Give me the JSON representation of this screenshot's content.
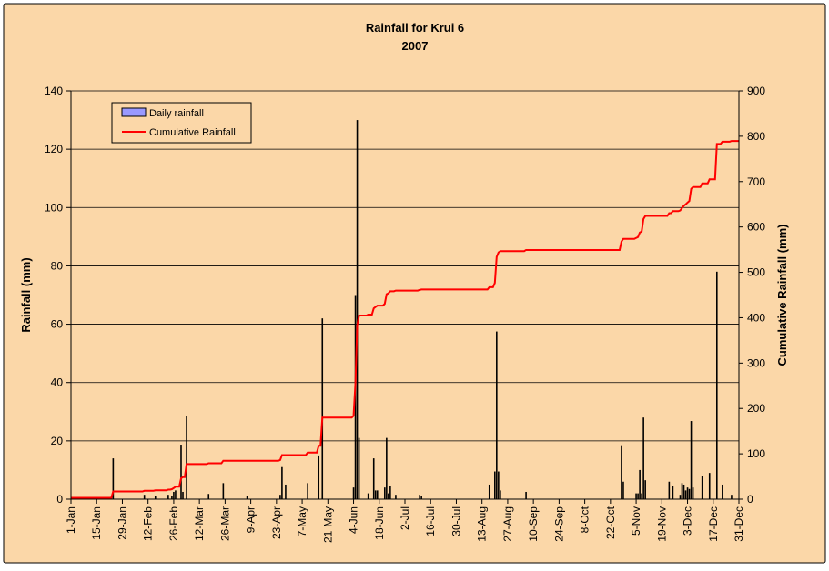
{
  "chart_data": {
    "type": "bar",
    "title": "Rainfall for Krui 6",
    "subtitle": "2007",
    "ylabel": "Rainfall (mm)",
    "y2label": "Cumulative Rainfall (mm)",
    "ylim": [
      0,
      140
    ],
    "yticks": [
      0,
      20,
      40,
      60,
      80,
      100,
      120,
      140
    ],
    "y2lim": [
      0,
      900
    ],
    "y2ticks": [
      0,
      100,
      200,
      300,
      400,
      500,
      600,
      700,
      800,
      900
    ],
    "xlim": [
      1,
      365
    ],
    "x_tick_days": [
      1,
      15,
      29,
      43,
      57,
      71,
      85,
      99,
      113,
      127,
      141,
      155,
      169,
      183,
      197,
      211,
      225,
      239,
      253,
      267,
      281,
      295,
      309,
      323,
      337,
      351,
      365
    ],
    "x_tick_labels": [
      "1-Jan",
      "15-Jan",
      "29-Jan",
      "12-Feb",
      "26-Feb",
      "12-Mar",
      "26-Mar",
      "9-Apr",
      "23-Apr",
      "7-May",
      "21-May",
      "4-Jun",
      "18-Jun",
      "2-Jul",
      "16-Jul",
      "30-Jul",
      "13-Aug",
      "27-Aug",
      "10-Sep",
      "24-Sep",
      "8-Oct",
      "22-Oct",
      "5-Nov",
      "19-Nov",
      "3-Dec",
      "17-Dec",
      "31-Dec"
    ],
    "grid": true,
    "legend_position": "top-left",
    "colors": {
      "background": "#FBD7A8",
      "plot_area": "#FBD7A8",
      "bars": "#000000",
      "cumulative_line": "#FF0000",
      "gridlines": "#000000",
      "legend_bar_swatch": "#9999FF"
    },
    "series": [
      {
        "name": "Daily rainfall",
        "type": "bar",
        "axis": "left",
        "x": [
          24,
          41,
          47,
          54,
          56,
          57,
          58,
          61,
          62,
          64,
          76,
          84,
          97,
          115,
          116,
          118,
          130,
          136,
          138,
          155,
          156,
          157,
          158,
          163,
          166,
          167,
          168,
          172,
          173,
          174,
          175,
          178,
          191,
          192,
          229,
          232,
          233,
          234,
          235,
          249,
          301,
          302,
          309,
          310,
          311,
          312,
          313,
          314,
          327,
          329,
          333,
          334,
          335,
          336,
          337,
          338,
          339,
          340,
          345,
          349,
          353,
          356,
          361
        ],
        "values": [
          14,
          1.5,
          1,
          1.5,
          1,
          2.5,
          3,
          18.7,
          2.5,
          28.6,
          1.8,
          5.5,
          1,
          1.5,
          11,
          5,
          5.5,
          15,
          62,
          4,
          70,
          130,
          21,
          2,
          14,
          3,
          3,
          4,
          21,
          2,
          4.5,
          1.5,
          1.5,
          1,
          5,
          9.5,
          57.5,
          9.5,
          3,
          2.5,
          18.5,
          6,
          2,
          2,
          10,
          2,
          28,
          6.5,
          6,
          4.5,
          1.5,
          5.5,
          5,
          3,
          4,
          3.5,
          26.8,
          4,
          8,
          9,
          78,
          5,
          1.5
        ]
      },
      {
        "name": "Cumulative Rainfall",
        "type": "step-line",
        "axis": "right",
        "x": [
          1,
          23,
          24,
          40,
          41,
          46,
          47,
          53,
          54,
          55,
          56,
          57,
          58,
          60,
          61,
          62,
          63,
          64,
          65,
          75,
          76,
          83,
          84,
          114,
          115,
          116,
          117,
          129,
          130,
          135,
          136,
          137,
          138,
          139,
          154,
          155,
          156,
          157,
          158,
          162,
          163,
          165,
          166,
          167,
          168,
          171,
          172,
          173,
          174,
          175,
          176,
          177,
          178,
          190,
          191,
          192,
          193,
          228,
          229,
          231,
          232,
          233,
          234,
          235,
          236,
          248,
          249,
          300,
          301,
          302,
          303,
          308,
          309,
          310,
          311,
          312,
          313,
          314,
          315,
          326,
          327,
          328,
          329,
          332,
          333,
          334,
          335,
          336,
          337,
          338,
          339,
          340,
          341,
          344,
          345,
          348,
          349,
          352,
          353,
          355,
          356,
          360,
          361,
          365
        ],
        "values": [
          3,
          3,
          17,
          17,
          18.5,
          18.5,
          19.5,
          19.5,
          21,
          21,
          22,
          24.5,
          27.5,
          27.5,
          46,
          48.7,
          48.7,
          77.5,
          77.5,
          77.5,
          79.3,
          79.3,
          84.8,
          84.8,
          86.3,
          97.3,
          97.3,
          97.3,
          102.8,
          102.8,
          117.8,
          117.8,
          179.8,
          179.8,
          179.8,
          183.8,
          253.8,
          383.8,
          404.8,
          404.8,
          406.8,
          406.8,
          420.8,
          423.8,
          426.8,
          426.8,
          430.8,
          451.8,
          453.8,
          458.3,
          458.3,
          458.3,
          459.8,
          459.8,
          461.3,
          462.3,
          462.3,
          462.3,
          467.3,
          467.3,
          476.8,
          534.3,
          543.8,
          546.8,
          546.8,
          546.8,
          549.3,
          549.3,
          567.8,
          573.8,
          573.8,
          573.8,
          575.8,
          577.8,
          587.8,
          589.8,
          617.8,
          624.3,
          624.3,
          624.3,
          630.3,
          630.3,
          634.8,
          634.8,
          636.3,
          641.8,
          646.8,
          649.8,
          653.8,
          657.3,
          684.1,
          688.1,
          688.1,
          688.1,
          696.1,
          696.1,
          705.1,
          705.1,
          783.1,
          783.1,
          788.1,
          788.1,
          789.6,
          789.6
        ]
      }
    ]
  }
}
